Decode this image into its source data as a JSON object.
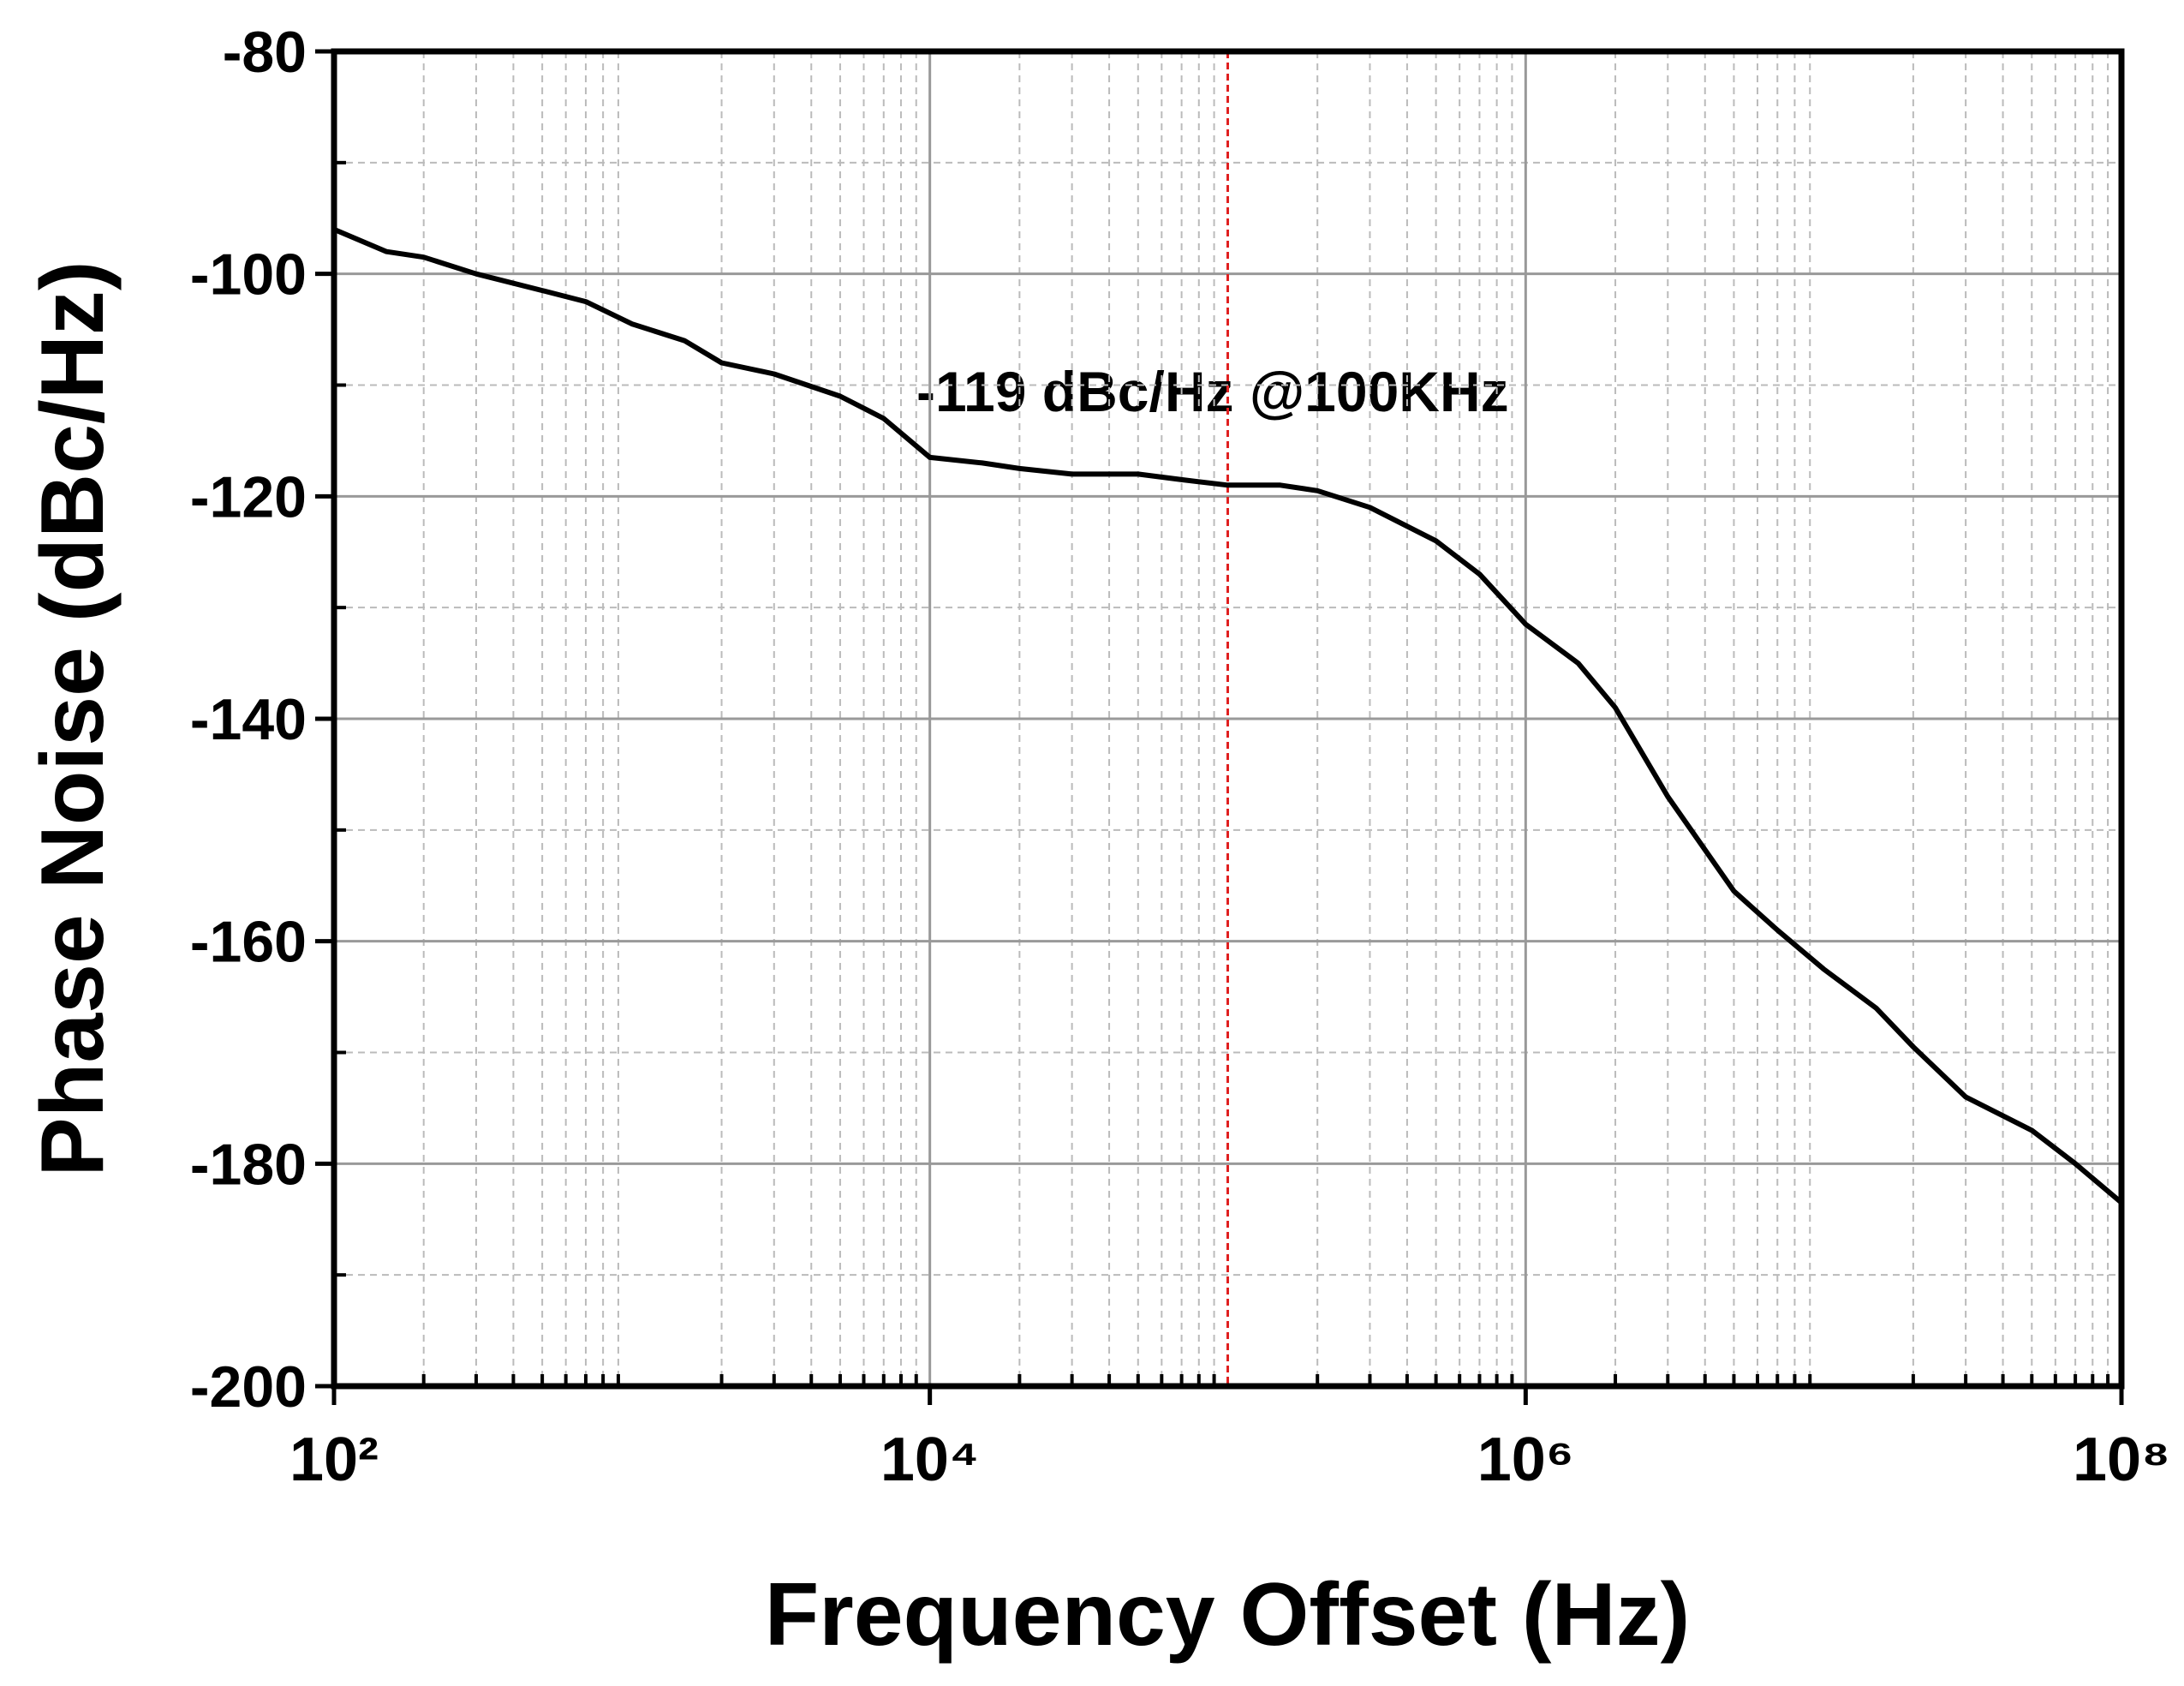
{
  "chart_data": {
    "type": "line",
    "xlabel": "Frequency Offset (Hz)",
    "ylabel": "Phase Noise (dBc/Hz)",
    "annotation": "-119 dBc/Hz @100KHz",
    "marker_x": 100000,
    "marker_color": "#e02020",
    "xscale": "log",
    "grid": true,
    "xlim": [
      100,
      100000000
    ],
    "ylim": [
      -200,
      -80
    ],
    "xticks": [
      {
        "value": 100,
        "label": "10²"
      },
      {
        "value": 10000,
        "label": "10⁴"
      },
      {
        "value": 1000000,
        "label": "10⁶"
      },
      {
        "value": 100000000,
        "label": "10⁸"
      }
    ],
    "yticks": [
      -200,
      -180,
      -160,
      -140,
      -120,
      -100,
      -80
    ],
    "x": [
      100,
      150,
      200,
      300,
      500,
      700,
      1000,
      1500,
      2000,
      3000,
      5000,
      7000,
      10000,
      15000,
      20000,
      30000,
      50000,
      70000,
      100000,
      150000,
      200000,
      300000,
      500000,
      700000,
      1000000,
      1500000,
      2000000,
      3000000,
      5000000,
      7000000,
      10000000,
      15000000,
      20000000,
      30000000,
      50000000,
      70000000,
      100000000
    ],
    "series": [
      {
        "color": "#000000",
        "values": [
          -96,
          -98,
          -98.5,
          -100,
          -101.5,
          -102.5,
          -104.5,
          -106,
          -108,
          -109,
          -111,
          -113,
          -116.5,
          -117,
          -117.5,
          -118,
          -118,
          -118.5,
          -119,
          -119,
          -119.5,
          -121,
          -124,
          -127,
          -131.5,
          -135,
          -139,
          -147,
          -155.5,
          -159,
          -162.5,
          -166,
          -169.5,
          -174,
          -177,
          -180,
          -183.5
        ]
      }
    ]
  }
}
